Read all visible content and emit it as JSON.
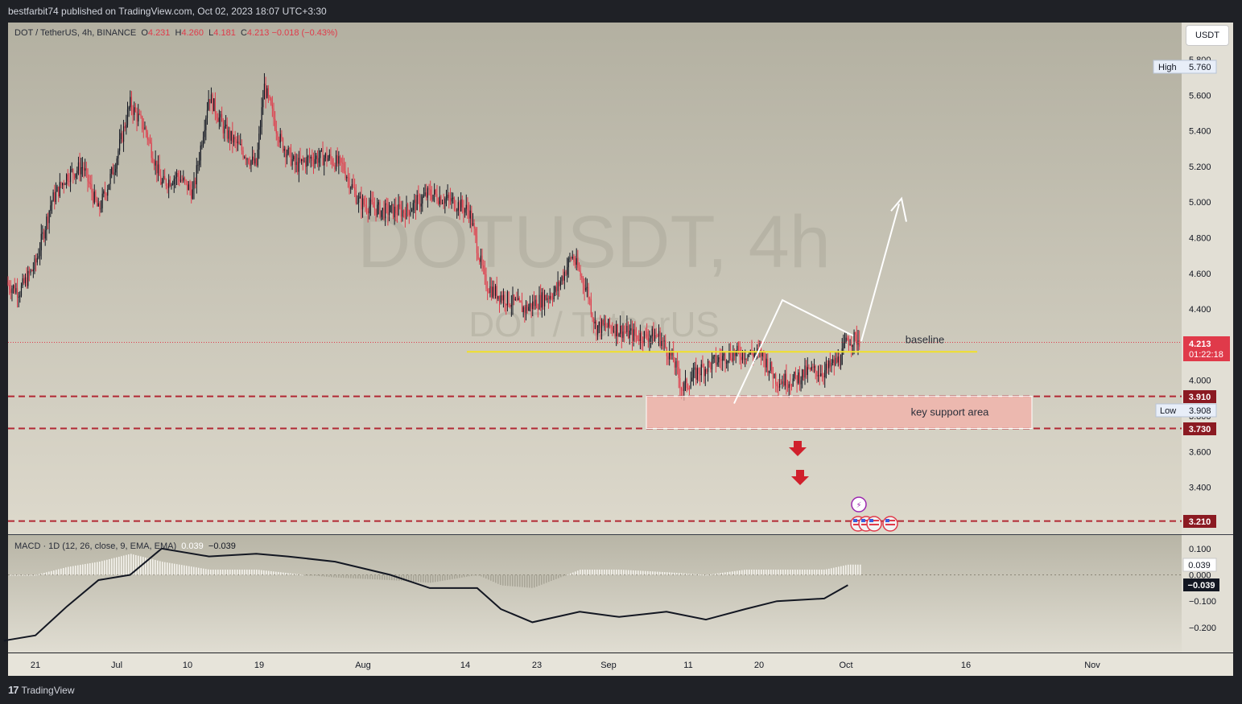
{
  "header": {
    "published": "bestfarbit74 published on TradingView.com, Oct 02, 2023 18:07 UTC+3:30"
  },
  "legend": {
    "symbol": "DOT / TetherUS, 4h, BINANCE",
    "o_label": "O",
    "o": "4.231",
    "h_label": "H",
    "h": "4.260",
    "l_label": "L",
    "l": "4.181",
    "c_label": "C",
    "c": "4.213",
    "chg": "−0.018 (−0.43%)"
  },
  "unit_button": "USDT",
  "watermark": {
    "line1": "DOTUSDT, 4h",
    "line2": "DOT / TetherUS"
  },
  "price_axis": {
    "ticks": [
      "5.800",
      "5.600",
      "5.400",
      "5.200",
      "5.000",
      "4.800",
      "4.600",
      "4.400",
      "4.000",
      "3.800",
      "3.600",
      "3.400"
    ],
    "high_label": "High",
    "high_value": "5.760",
    "low_label": "Low",
    "low_value": "3.908",
    "current_price": "4.213",
    "countdown": "01:22:18",
    "level_3910": "3.910",
    "level_3730": "3.730",
    "level_3210": "3.210"
  },
  "macd": {
    "legend": "MACD · 1D (12, 26, close, 9, EMA, EMA)",
    "hist_value": "0.039",
    "macd_value": "−0.039",
    "ticks": [
      "0.100",
      "0.000",
      "−0.100",
      "−0.200"
    ],
    "label_hist": "0.039",
    "label_macd": "−0.039"
  },
  "time_axis": [
    "21",
    "Jul",
    "10",
    "19",
    "Aug",
    "14",
    "23",
    "Sep",
    "11",
    "20",
    "Oct",
    "16",
    "Nov"
  ],
  "annotations": {
    "baseline": "baseline",
    "support": "key support area"
  },
  "footer": {
    "brand": "TradingView"
  },
  "colors": {
    "up": "#131722",
    "down": "#e03a4a",
    "baseline": "#f0e02a",
    "support_fill": "#f4b0a8",
    "level_line": "#b22833"
  },
  "chart_data": {
    "type": "candlestick",
    "symbol": "DOT / TetherUS",
    "timeframe": "4h",
    "exchange": "BINANCE",
    "ylim": [
      3.2,
      5.85
    ],
    "close_path": [
      {
        "date": "2023-06-17",
        "close": 4.55
      },
      {
        "date": "2023-06-19",
        "close": 4.5
      },
      {
        "date": "2023-06-21",
        "close": 4.65
      },
      {
        "date": "2023-06-23",
        "close": 5.0
      },
      {
        "date": "2023-06-25",
        "close": 5.15
      },
      {
        "date": "2023-06-27",
        "close": 5.2
      },
      {
        "date": "2023-06-29",
        "close": 4.95
      },
      {
        "date": "2023-07-01",
        "close": 5.2
      },
      {
        "date": "2023-07-03",
        "close": 5.55
      },
      {
        "date": "2023-07-05",
        "close": 5.4
      },
      {
        "date": "2023-07-07",
        "close": 5.1
      },
      {
        "date": "2023-07-09",
        "close": 5.15
      },
      {
        "date": "2023-07-11",
        "close": 5.05
      },
      {
        "date": "2023-07-13",
        "close": 5.6
      },
      {
        "date": "2023-07-15",
        "close": 5.4
      },
      {
        "date": "2023-07-17",
        "close": 5.3
      },
      {
        "date": "2023-07-19",
        "close": 5.2
      },
      {
        "date": "2023-07-20",
        "close": 5.65
      },
      {
        "date": "2023-07-22",
        "close": 5.35
      },
      {
        "date": "2023-07-24",
        "close": 5.2
      },
      {
        "date": "2023-07-26",
        "close": 5.25
      },
      {
        "date": "2023-07-28",
        "close": 5.25
      },
      {
        "date": "2023-07-30",
        "close": 5.2
      },
      {
        "date": "2023-08-01",
        "close": 5.0
      },
      {
        "date": "2023-08-04",
        "close": 4.95
      },
      {
        "date": "2023-08-07",
        "close": 4.95
      },
      {
        "date": "2023-08-10",
        "close": 5.05
      },
      {
        "date": "2023-08-13",
        "close": 5.0
      },
      {
        "date": "2023-08-15",
        "close": 4.95
      },
      {
        "date": "2023-08-17",
        "close": 4.55
      },
      {
        "date": "2023-08-18",
        "close": 4.5
      },
      {
        "date": "2023-08-20",
        "close": 4.45
      },
      {
        "date": "2023-08-22",
        "close": 4.4
      },
      {
        "date": "2023-08-24",
        "close": 4.45
      },
      {
        "date": "2023-08-26",
        "close": 4.5
      },
      {
        "date": "2023-08-28",
        "close": 4.7
      },
      {
        "date": "2023-08-30",
        "close": 4.5
      },
      {
        "date": "2023-08-31",
        "close": 4.3
      },
      {
        "date": "2023-09-02",
        "close": 4.3
      },
      {
        "date": "2023-09-05",
        "close": 4.25
      },
      {
        "date": "2023-09-08",
        "close": 4.25
      },
      {
        "date": "2023-09-10",
        "close": 4.1
      },
      {
        "date": "2023-09-11",
        "close": 3.95
      },
      {
        "date": "2023-09-13",
        "close": 4.05
      },
      {
        "date": "2023-09-15",
        "close": 4.1
      },
      {
        "date": "2023-09-17",
        "close": 4.15
      },
      {
        "date": "2023-09-19",
        "close": 4.15
      },
      {
        "date": "2023-09-21",
        "close": 4.15
      },
      {
        "date": "2023-09-23",
        "close": 4.0
      },
      {
        "date": "2023-09-25",
        "close": 4.0
      },
      {
        "date": "2023-09-27",
        "close": 4.05
      },
      {
        "date": "2023-09-29",
        "close": 4.05
      },
      {
        "date": "2023-10-01",
        "close": 4.12
      },
      {
        "date": "2023-10-02",
        "close": 4.23
      }
    ],
    "high": 5.76,
    "low": 3.908,
    "last_close": 4.213,
    "horizontal_levels": [
      3.91,
      3.73,
      3.21
    ],
    "baseline_level": 4.16,
    "support_zone": [
      3.73,
      3.91
    ],
    "macd_series": {
      "name": "MACD · 1D (12, 26, close, 9, EMA, EMA)",
      "ylim": [
        -0.27,
        0.14
      ],
      "macd_line": [
        {
          "date": "2023-06-17",
          "value": -0.25
        },
        {
          "date": "2023-06-21",
          "value": -0.23
        },
        {
          "date": "2023-06-25",
          "value": -0.12
        },
        {
          "date": "2023-06-29",
          "value": -0.02
        },
        {
          "date": "2023-07-03",
          "value": 0.0
        },
        {
          "date": "2023-07-07",
          "value": 0.1
        },
        {
          "date": "2023-07-13",
          "value": 0.07
        },
        {
          "date": "2023-07-19",
          "value": 0.08
        },
        {
          "date": "2023-07-23",
          "value": 0.07
        },
        {
          "date": "2023-07-29",
          "value": 0.05
        },
        {
          "date": "2023-08-05",
          "value": 0.0
        },
        {
          "date": "2023-08-10",
          "value": -0.05
        },
        {
          "date": "2023-08-16",
          "value": -0.05
        },
        {
          "date": "2023-08-19",
          "value": -0.13
        },
        {
          "date": "2023-08-23",
          "value": -0.18
        },
        {
          "date": "2023-08-29",
          "value": -0.14
        },
        {
          "date": "2023-09-03",
          "value": -0.16
        },
        {
          "date": "2023-09-09",
          "value": -0.14
        },
        {
          "date": "2023-09-14",
          "value": -0.17
        },
        {
          "date": "2023-09-19",
          "value": -0.13
        },
        {
          "date": "2023-09-23",
          "value": -0.1
        },
        {
          "date": "2023-09-29",
          "value": -0.09
        },
        {
          "date": "2023-10-02",
          "value": -0.039
        }
      ],
      "histogram": [
        {
          "date": "2023-06-21",
          "value": 0.0
        },
        {
          "date": "2023-06-25",
          "value": 0.03
        },
        {
          "date": "2023-06-29",
          "value": 0.05
        },
        {
          "date": "2023-07-03",
          "value": 0.08
        },
        {
          "date": "2023-07-07",
          "value": 0.05
        },
        {
          "date": "2023-07-13",
          "value": 0.02
        },
        {
          "date": "2023-07-19",
          "value": 0.02
        },
        {
          "date": "2023-07-25",
          "value": 0.0
        },
        {
          "date": "2023-07-29",
          "value": -0.01
        },
        {
          "date": "2023-08-05",
          "value": -0.02
        },
        {
          "date": "2023-08-10",
          "value": -0.03
        },
        {
          "date": "2023-08-16",
          "value": 0.0
        },
        {
          "date": "2023-08-19",
          "value": -0.04
        },
        {
          "date": "2023-08-23",
          "value": -0.05
        },
        {
          "date": "2023-08-29",
          "value": 0.02
        },
        {
          "date": "2023-09-03",
          "value": 0.02
        },
        {
          "date": "2023-09-09",
          "value": 0.01
        },
        {
          "date": "2023-09-14",
          "value": 0.0
        },
        {
          "date": "2023-09-19",
          "value": 0.02
        },
        {
          "date": "2023-09-23",
          "value": 0.02
        },
        {
          "date": "2023-09-29",
          "value": 0.02
        },
        {
          "date": "2023-10-02",
          "value": 0.039
        }
      ]
    }
  }
}
